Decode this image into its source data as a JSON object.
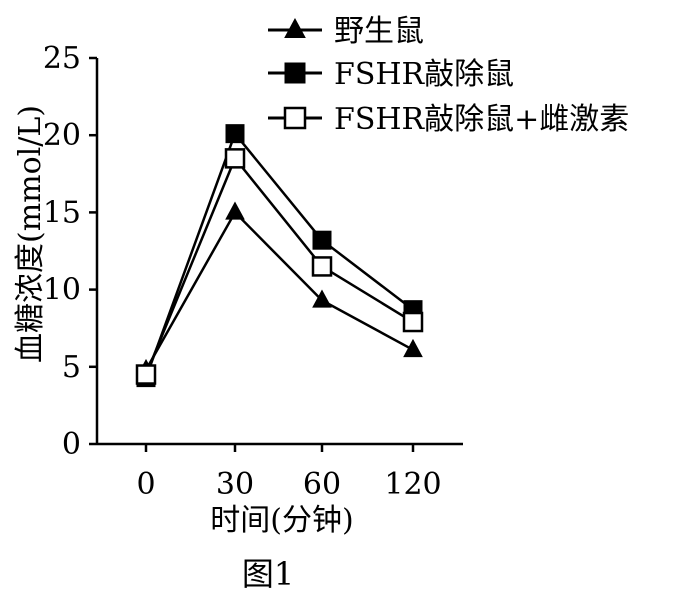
{
  "chart_data": {
    "type": "line",
    "title": "",
    "caption": "图1",
    "xlabel": "时间(分钟)",
    "ylabel": "血糖浓度(mmol/L)",
    "x": [
      0,
      30,
      60,
      120
    ],
    "x_tick_labels": [
      "0",
      "30",
      "60",
      "120"
    ],
    "yticks": [
      0,
      5,
      10,
      15,
      20,
      25
    ],
    "y_tick_labels": [
      "0",
      "5",
      "10",
      "15",
      "20",
      "25"
    ],
    "ylim": [
      0,
      25
    ],
    "grid": false,
    "legend_position": "top-right",
    "series": [
      {
        "name": "野生鼠",
        "marker": "filled-triangle",
        "values": [
          4.8,
          15.0,
          9.3,
          6.1
        ]
      },
      {
        "name": "FSHR敲除鼠",
        "marker": "filled-square",
        "values": [
          4.3,
          20.1,
          13.2,
          8.7
        ]
      },
      {
        "name": "FSHR敲除鼠+雌激素",
        "marker": "open-square",
        "values": [
          4.5,
          18.5,
          11.5,
          7.9
        ]
      }
    ]
  }
}
